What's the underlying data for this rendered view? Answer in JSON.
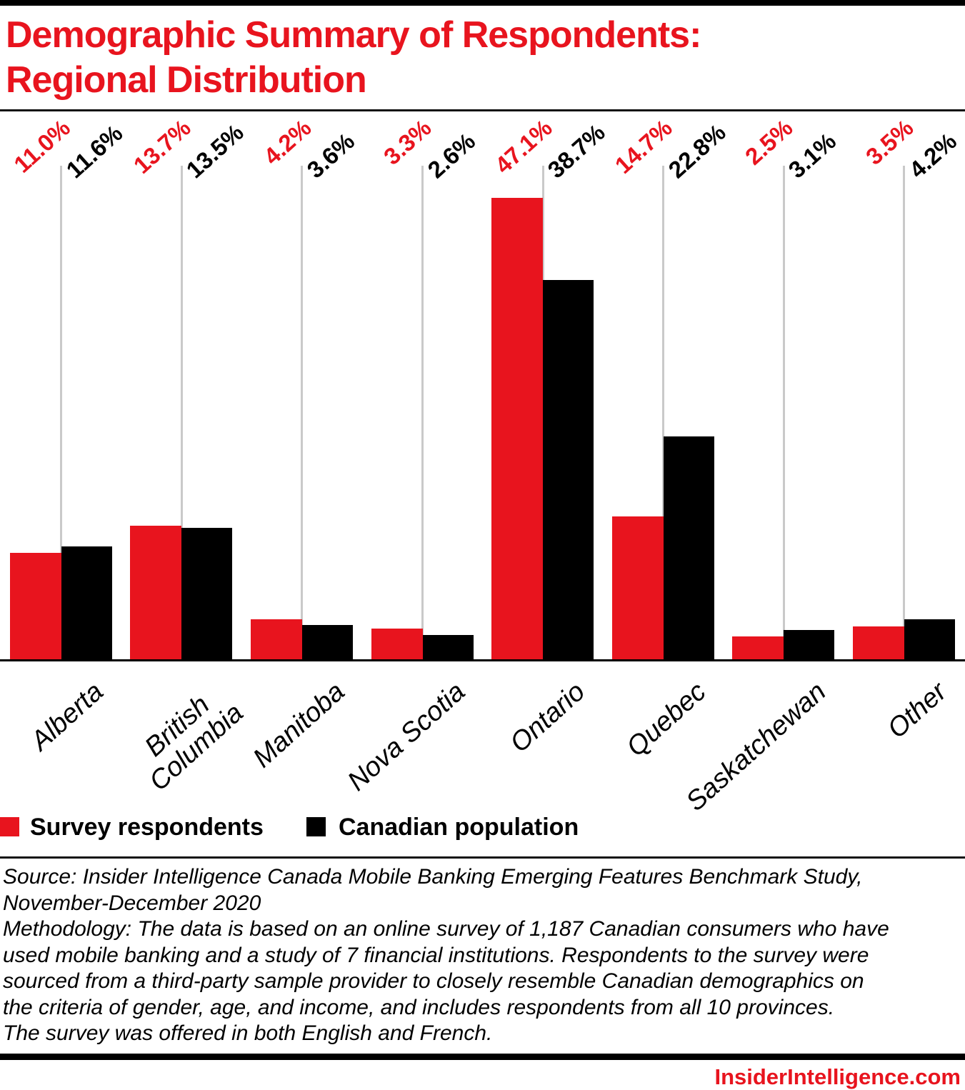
{
  "header": {
    "title_line1": "Demographic Summary of Respondents:",
    "title_line2": "Regional Distribution"
  },
  "chart_data": {
    "type": "bar",
    "title": "Demographic Summary of Respondents: Regional Distribution",
    "categories": [
      "Alberta",
      "British\nColumbia",
      "Manitoba",
      "Nova Scotia",
      "Ontario",
      "Quebec",
      "Saskatchewan",
      "Other"
    ],
    "series": [
      {
        "name": "Survey respondents",
        "color": "#e8141e",
        "values": [
          11.0,
          13.7,
          4.2,
          3.3,
          47.1,
          14.7,
          2.5,
          3.5
        ]
      },
      {
        "name": "Canadian population",
        "color": "#000000",
        "values": [
          11.6,
          13.5,
          3.6,
          2.6,
          38.7,
          22.8,
          3.1,
          4.2
        ]
      }
    ],
    "value_suffix": "%",
    "value_decimals": 1,
    "ylim": [
      0,
      50
    ],
    "grid": "vertical per category",
    "legend_position": "bottom-left"
  },
  "legend": {
    "items": [
      {
        "label": "Survey respondents",
        "color": "#e8141e"
      },
      {
        "label": "Canadian population",
        "color": "#000000"
      }
    ]
  },
  "footer": {
    "source_lines": [
      "Source: Insider Intelligence Canada Mobile Banking Emerging Features Benchmark Study,",
      "November-December 2020",
      "Methodology: The data is based on an online survey of 1,187 Canadian consumers who have",
      "used mobile banking and a study of 7 financial institutions. Respondents to the survey were",
      "sourced from a third-party sample provider to closely resemble Canadian demographics on",
      "the criteria of gender, age, and income, and includes respondents from all 10 provinces.",
      "The survey was offered in both English and French."
    ],
    "brand": "InsiderIntelligence.com"
  },
  "colors": {
    "accent_red": "#e8141e",
    "bar_black": "#000000",
    "gridline": "#c9c9c9"
  }
}
